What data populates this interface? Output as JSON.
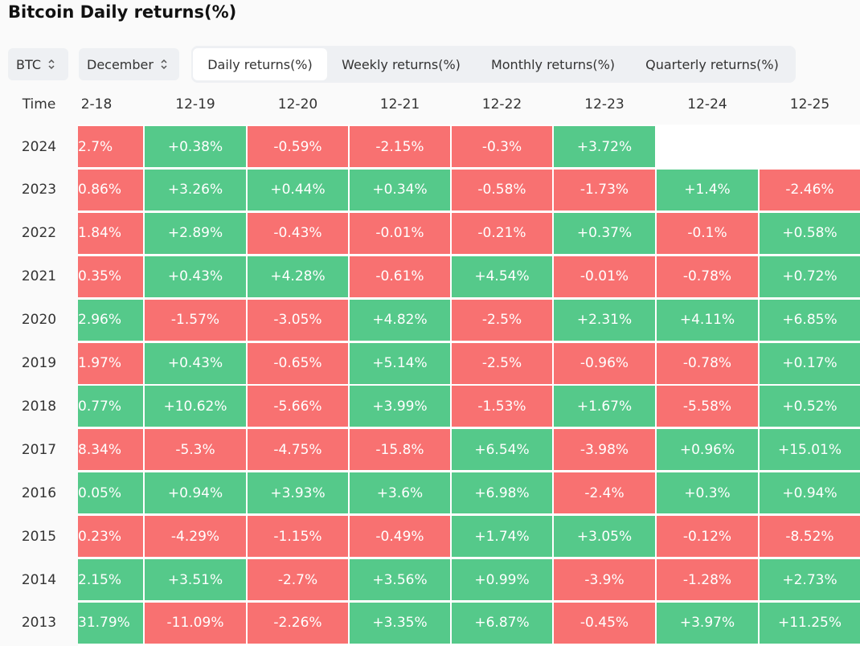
{
  "header": {
    "title": "Bitcoin Daily returns(%)"
  },
  "controls": {
    "asset": "BTC",
    "month": "December",
    "tabs": [
      "Daily returns(%)",
      "Weekly returns(%)",
      "Monthly returns(%)",
      "Quarterly returns(%)"
    ],
    "active_tab": 0
  },
  "table": {
    "corner": "Time",
    "columns": [
      "2-18",
      "12-19",
      "12-20",
      "12-21",
      "12-22",
      "12-23",
      "12-24",
      "12-25"
    ],
    "rows": [
      {
        "year": "2024",
        "cells": [
          {
            "text": "2.7%",
            "color": "#f87171"
          },
          {
            "text": "+0.38%",
            "color": "#55c98a"
          },
          {
            "text": "-0.59%",
            "color": "#f87171"
          },
          {
            "text": "-2.15%",
            "color": "#f87171"
          },
          {
            "text": "-0.3%",
            "color": "#f87171"
          },
          {
            "text": "+3.72%",
            "color": "#55c98a"
          },
          null,
          null
        ]
      },
      {
        "year": "2023",
        "cells": [
          {
            "text": "0.86%",
            "color": "#f87171"
          },
          {
            "text": "+3.26%",
            "color": "#55c98a"
          },
          {
            "text": "+0.44%",
            "color": "#55c98a"
          },
          {
            "text": "+0.34%",
            "color": "#55c98a"
          },
          {
            "text": "-0.58%",
            "color": "#f87171"
          },
          {
            "text": "-1.73%",
            "color": "#f87171"
          },
          {
            "text": "+1.4%",
            "color": "#55c98a"
          },
          {
            "text": "-2.46%",
            "color": "#f87171"
          }
        ]
      },
      {
        "year": "2022",
        "cells": [
          {
            "text": "1.84%",
            "color": "#f87171"
          },
          {
            "text": "+2.89%",
            "color": "#55c98a"
          },
          {
            "text": "-0.43%",
            "color": "#f87171"
          },
          {
            "text": "-0.01%",
            "color": "#f87171"
          },
          {
            "text": "-0.21%",
            "color": "#f87171"
          },
          {
            "text": "+0.37%",
            "color": "#55c98a"
          },
          {
            "text": "-0.1%",
            "color": "#f87171"
          },
          {
            "text": "+0.58%",
            "color": "#55c98a"
          }
        ]
      },
      {
        "year": "2021",
        "cells": [
          {
            "text": "0.35%",
            "color": "#f87171"
          },
          {
            "text": "+0.43%",
            "color": "#55c98a"
          },
          {
            "text": "+4.28%",
            "color": "#55c98a"
          },
          {
            "text": "-0.61%",
            "color": "#f87171"
          },
          {
            "text": "+4.54%",
            "color": "#55c98a"
          },
          {
            "text": "-0.01%",
            "color": "#f87171"
          },
          {
            "text": "-0.78%",
            "color": "#f87171"
          },
          {
            "text": "+0.72%",
            "color": "#55c98a"
          }
        ]
      },
      {
        "year": "2020",
        "cells": [
          {
            "text": "2.96%",
            "color": "#55c98a"
          },
          {
            "text": "-1.57%",
            "color": "#f87171"
          },
          {
            "text": "-3.05%",
            "color": "#f87171"
          },
          {
            "text": "+4.82%",
            "color": "#55c98a"
          },
          {
            "text": "-2.5%",
            "color": "#f87171"
          },
          {
            "text": "+2.31%",
            "color": "#55c98a"
          },
          {
            "text": "+4.11%",
            "color": "#55c98a"
          },
          {
            "text": "+6.85%",
            "color": "#55c98a"
          }
        ]
      },
      {
        "year": "2019",
        "cells": [
          {
            "text": "1.97%",
            "color": "#f87171"
          },
          {
            "text": "+0.43%",
            "color": "#55c98a"
          },
          {
            "text": "-0.65%",
            "color": "#f87171"
          },
          {
            "text": "+5.14%",
            "color": "#55c98a"
          },
          {
            "text": "-2.5%",
            "color": "#f87171"
          },
          {
            "text": "-0.96%",
            "color": "#f87171"
          },
          {
            "text": "-0.78%",
            "color": "#f87171"
          },
          {
            "text": "+0.17%",
            "color": "#55c98a"
          }
        ]
      },
      {
        "year": "2018",
        "cells": [
          {
            "text": "0.77%",
            "color": "#55c98a"
          },
          {
            "text": "+10.62%",
            "color": "#55c98a"
          },
          {
            "text": "-5.66%",
            "color": "#f87171"
          },
          {
            "text": "+3.99%",
            "color": "#55c98a"
          },
          {
            "text": "-1.53%",
            "color": "#f87171"
          },
          {
            "text": "+1.67%",
            "color": "#55c98a"
          },
          {
            "text": "-5.58%",
            "color": "#f87171"
          },
          {
            "text": "+0.52%",
            "color": "#55c98a"
          }
        ]
      },
      {
        "year": "2017",
        "cells": [
          {
            "text": "8.34%",
            "color": "#f87171"
          },
          {
            "text": "-5.3%",
            "color": "#f87171"
          },
          {
            "text": "-4.75%",
            "color": "#f87171"
          },
          {
            "text": "-15.8%",
            "color": "#f87171"
          },
          {
            "text": "+6.54%",
            "color": "#55c98a"
          },
          {
            "text": "-3.98%",
            "color": "#f87171"
          },
          {
            "text": "+0.96%",
            "color": "#55c98a"
          },
          {
            "text": "+15.01%",
            "color": "#55c98a"
          }
        ]
      },
      {
        "year": "2016",
        "cells": [
          {
            "text": "0.05%",
            "color": "#55c98a"
          },
          {
            "text": "+0.94%",
            "color": "#55c98a"
          },
          {
            "text": "+3.93%",
            "color": "#55c98a"
          },
          {
            "text": "+3.6%",
            "color": "#55c98a"
          },
          {
            "text": "+6.98%",
            "color": "#55c98a"
          },
          {
            "text": "-2.4%",
            "color": "#f87171"
          },
          {
            "text": "+0.3%",
            "color": "#55c98a"
          },
          {
            "text": "+0.94%",
            "color": "#55c98a"
          }
        ]
      },
      {
        "year": "2015",
        "cells": [
          {
            "text": "0.23%",
            "color": "#f87171"
          },
          {
            "text": "-4.29%",
            "color": "#f87171"
          },
          {
            "text": "-1.15%",
            "color": "#f87171"
          },
          {
            "text": "-0.49%",
            "color": "#f87171"
          },
          {
            "text": "+1.74%",
            "color": "#55c98a"
          },
          {
            "text": "+3.05%",
            "color": "#55c98a"
          },
          {
            "text": "-0.12%",
            "color": "#f87171"
          },
          {
            "text": "-8.52%",
            "color": "#f87171"
          }
        ]
      },
      {
        "year": "2014",
        "cells": [
          {
            "text": "2.15%",
            "color": "#55c98a"
          },
          {
            "text": "+3.51%",
            "color": "#55c98a"
          },
          {
            "text": "-2.7%",
            "color": "#f87171"
          },
          {
            "text": "+3.56%",
            "color": "#55c98a"
          },
          {
            "text": "+0.99%",
            "color": "#55c98a"
          },
          {
            "text": "-3.9%",
            "color": "#f87171"
          },
          {
            "text": "-1.28%",
            "color": "#f87171"
          },
          {
            "text": "+2.73%",
            "color": "#55c98a"
          }
        ]
      },
      {
        "year": "2013",
        "cells": [
          {
            "text": "31.79%",
            "color": "#55c98a"
          },
          {
            "text": "-11.09%",
            "color": "#f87171"
          },
          {
            "text": "-2.26%",
            "color": "#f87171"
          },
          {
            "text": "+3.35%",
            "color": "#55c98a"
          },
          {
            "text": "+6.87%",
            "color": "#55c98a"
          },
          {
            "text": "-0.45%",
            "color": "#f87171"
          },
          {
            "text": "+3.97%",
            "color": "#55c98a"
          },
          {
            "text": "+11.25%",
            "color": "#55c98a"
          }
        ]
      }
    ]
  }
}
